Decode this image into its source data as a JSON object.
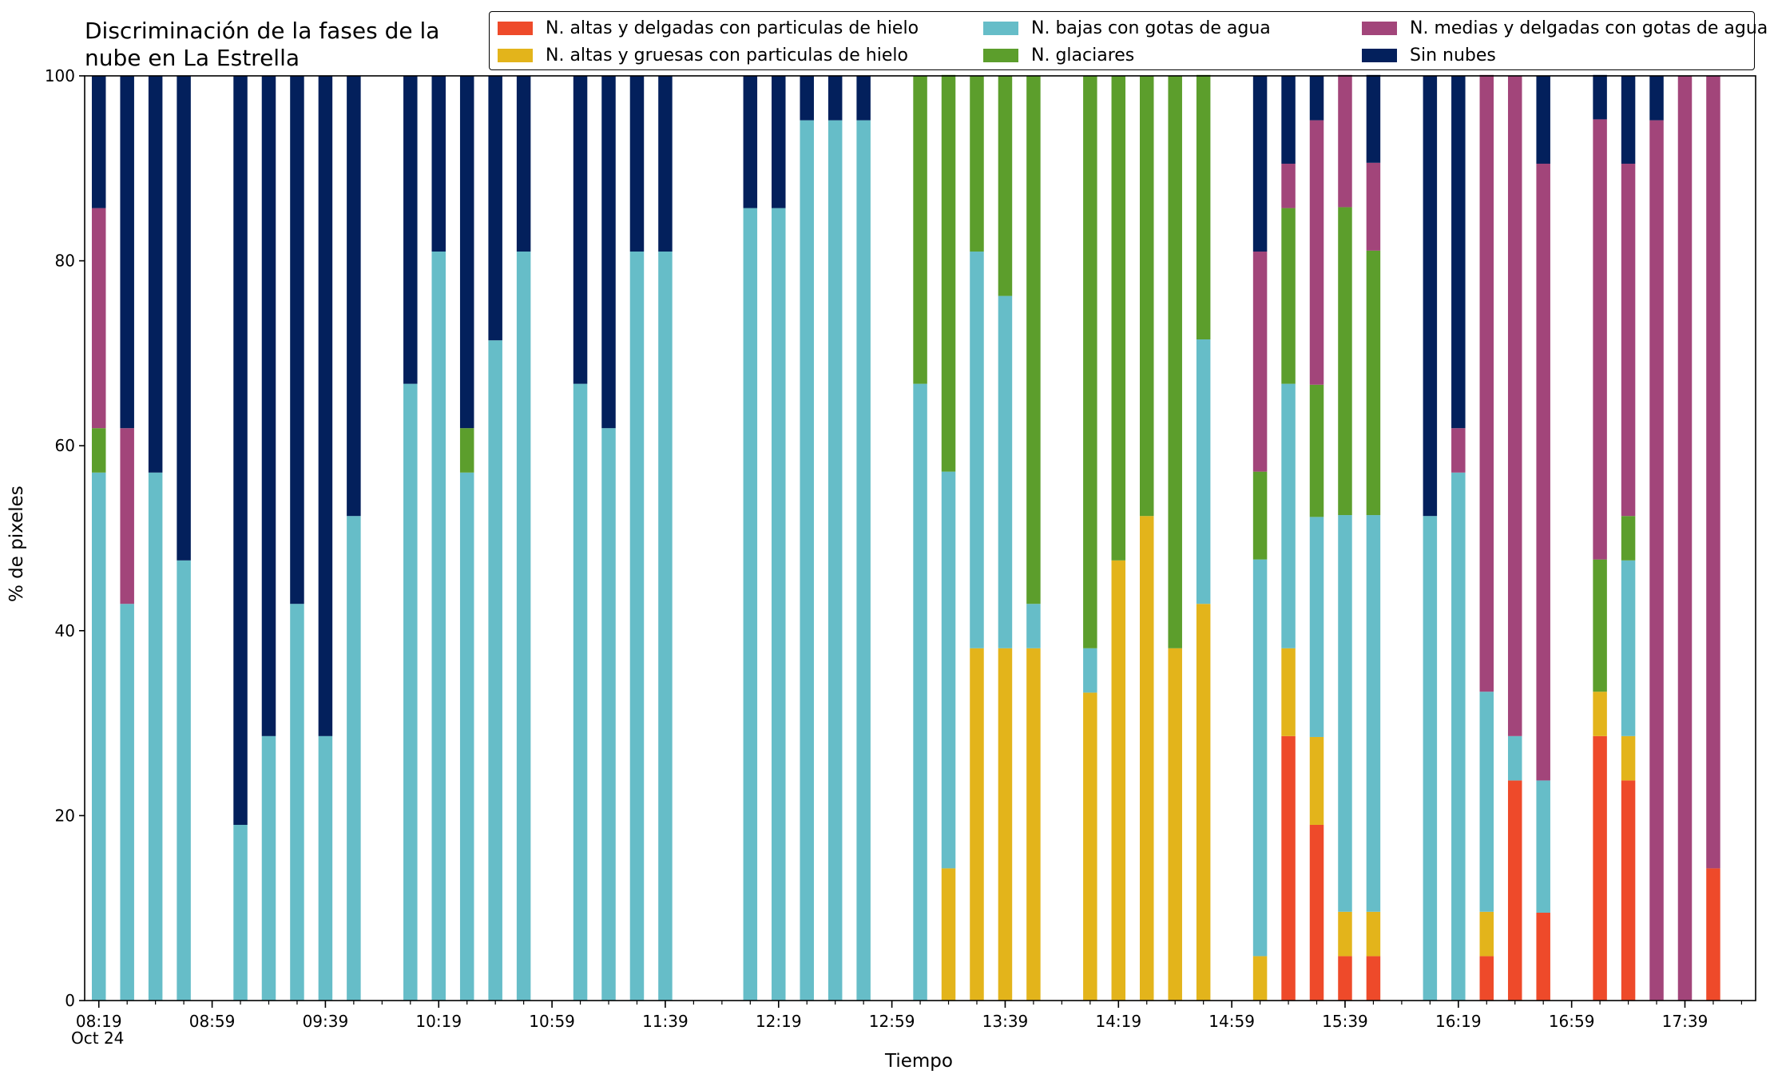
{
  "chart_data": {
    "type": "bar",
    "stacked": true,
    "title": "Discriminación de la fases de la\nnube en La Estrella",
    "xlabel": "Tiempo",
    "ylabel": "% de pixeles",
    "ylim": [
      0,
      100
    ],
    "yticks": [
      0,
      20,
      40,
      60,
      80,
      100
    ],
    "x_date_label": "Oct 24",
    "xticks": [
      {
        "label": "08:19",
        "minutes": 499
      },
      {
        "label": "08:59",
        "minutes": 539
      },
      {
        "label": "09:39",
        "minutes": 579
      },
      {
        "label": "10:19",
        "minutes": 619
      },
      {
        "label": "10:59",
        "minutes": 659
      },
      {
        "label": "11:39",
        "minutes": 699
      },
      {
        "label": "12:19",
        "minutes": 739
      },
      {
        "label": "12:59",
        "minutes": 779
      },
      {
        "label": "13:39",
        "minutes": 819
      },
      {
        "label": "14:19",
        "minutes": 859
      },
      {
        "label": "14:59",
        "minutes": 899
      },
      {
        "label": "15:39",
        "minutes": 939
      },
      {
        "label": "16:19",
        "minutes": 979
      },
      {
        "label": "16:59",
        "minutes": 1019
      },
      {
        "label": "17:39",
        "minutes": 1059
      }
    ],
    "x_minutes": [
      499,
      509,
      519,
      529,
      549,
      559,
      569,
      579,
      589,
      609,
      619,
      629,
      639,
      649,
      669,
      679,
      689,
      699,
      729,
      739,
      749,
      759,
      769,
      789,
      799,
      809,
      819,
      829,
      849,
      859,
      869,
      879,
      889,
      909,
      919,
      929,
      939,
      949,
      969,
      979,
      989,
      999,
      1009,
      1029,
      1039,
      1049,
      1059,
      1069
    ],
    "series": [
      {
        "name": "N. altas y delgadas con particulas de hielo",
        "color": "#ee4a2a",
        "values": [
          0,
          0,
          0,
          0,
          0,
          0,
          0,
          0,
          0,
          0,
          0,
          0,
          0,
          0,
          0,
          0,
          0,
          0,
          0,
          0,
          0,
          0,
          0,
          0,
          0,
          0,
          0,
          0,
          0,
          0,
          0,
          0,
          0,
          0,
          28.6,
          19,
          4.8,
          4.8,
          0,
          0,
          4.8,
          23.8,
          9.5,
          28.6,
          23.8,
          0,
          0,
          14.3
        ]
      },
      {
        "name": "N. altas y gruesas con particulas de hielo",
        "color": "#e3b41b",
        "values": [
          0,
          0,
          0,
          0,
          0,
          0,
          0,
          0,
          0,
          0,
          0,
          0,
          0,
          0,
          0,
          0,
          0,
          0,
          0,
          0,
          0,
          0,
          0,
          0,
          14.3,
          38.1,
          38.1,
          38.1,
          33.3,
          47.6,
          52.4,
          38.1,
          42.9,
          4.8,
          9.5,
          9.5,
          4.8,
          4.8,
          0,
          0,
          4.8,
          0,
          0,
          4.8,
          4.8,
          0,
          0,
          0
        ]
      },
      {
        "name": "N. bajas con gotas de agua",
        "color": "#66bdc8",
        "values": [
          57.1,
          42.9,
          57.1,
          47.6,
          19,
          28.6,
          42.9,
          28.6,
          52.4,
          66.7,
          81,
          57.1,
          71.4,
          81,
          66.7,
          61.9,
          81,
          81,
          85.7,
          85.7,
          95.2,
          95.2,
          95.2,
          66.7,
          42.9,
          42.9,
          38.1,
          4.8,
          4.8,
          0,
          0,
          0,
          28.6,
          42.9,
          28.6,
          23.8,
          42.9,
          42.9,
          52.4,
          57.1,
          23.8,
          4.8,
          14.3,
          0,
          19,
          0,
          0,
          0
        ]
      },
      {
        "name": "N. glaciares",
        "color": "#5c9e2c",
        "values": [
          4.8,
          0,
          0,
          0,
          0,
          0,
          0,
          0,
          0,
          0,
          0,
          4.8,
          0,
          0,
          0,
          0,
          0,
          0,
          0,
          0,
          0,
          0,
          0,
          33.3,
          42.9,
          19,
          23.8,
          57.1,
          61.9,
          52.4,
          47.6,
          61.9,
          28.6,
          9.5,
          19,
          14.3,
          33.3,
          28.6,
          0,
          0,
          0,
          0,
          0,
          14.3,
          4.8,
          0,
          0,
          0
        ]
      },
      {
        "name": "N. medias y delgadas con gotas de agua",
        "color": "#a2457a",
        "values": [
          23.8,
          19,
          0,
          0,
          0,
          0,
          0,
          0,
          0,
          0,
          0,
          0,
          0,
          0,
          0,
          0,
          0,
          0,
          0,
          0,
          0,
          0,
          0,
          0,
          0,
          0,
          0,
          0,
          0,
          0,
          0,
          0,
          0,
          23.8,
          4.8,
          28.6,
          14.3,
          9.5,
          0,
          4.8,
          66.7,
          71.4,
          66.7,
          47.6,
          38.1,
          95.2,
          100,
          85.7
        ]
      },
      {
        "name": "Sin nubes",
        "color": "#03205c",
        "values": [
          14.3,
          38.1,
          42.9,
          52.4,
          81,
          71.4,
          57.1,
          71.4,
          47.6,
          33.3,
          19,
          38.1,
          28.6,
          19,
          33.3,
          38.1,
          19,
          19,
          14.3,
          14.3,
          4.8,
          4.8,
          4.8,
          0,
          0,
          0,
          0,
          0,
          0,
          0,
          0,
          0,
          0,
          19,
          9.5,
          4.8,
          0,
          9.5,
          47.6,
          38.1,
          0,
          0,
          9.5,
          4.8,
          9.5,
          4.8,
          0,
          0
        ]
      }
    ]
  }
}
